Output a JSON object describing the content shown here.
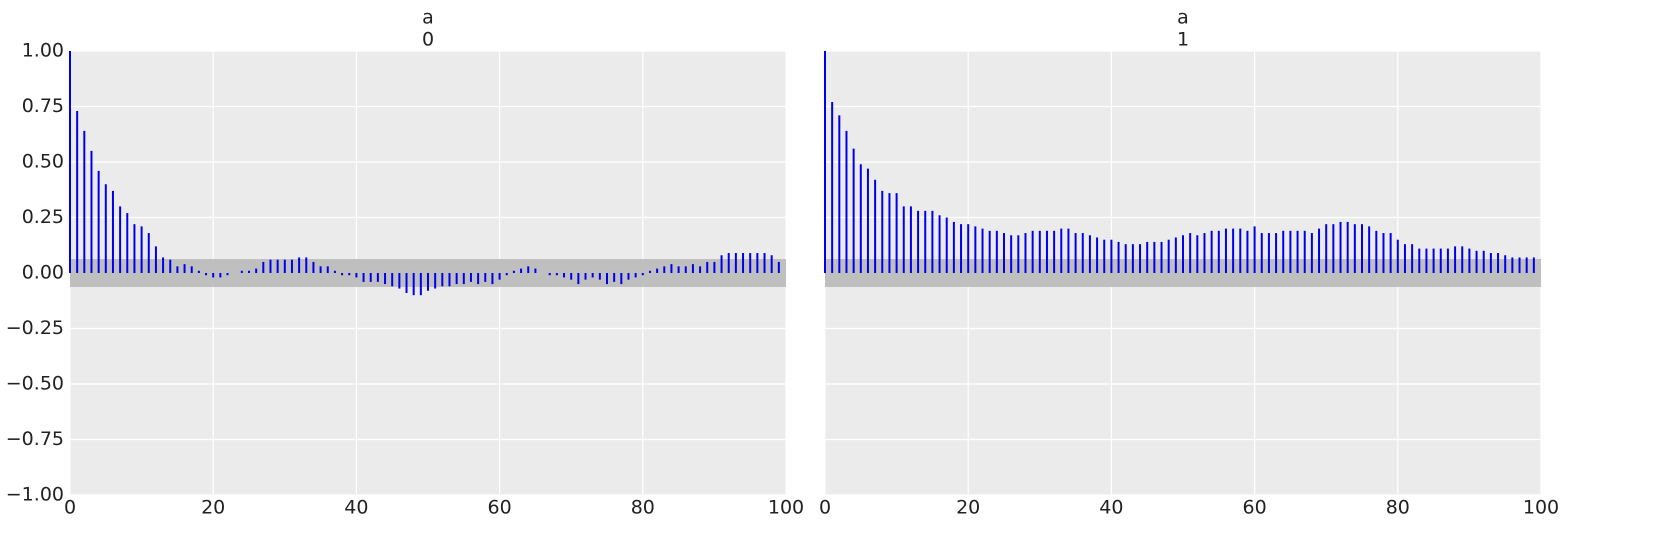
{
  "chart_data": [
    {
      "type": "stem",
      "title": "a",
      "subtitle": "0",
      "color": "#0000ee",
      "band_color": "#bfbfbf",
      "confidence_band": 0.063,
      "x": [
        0,
        1,
        2,
        3,
        4,
        5,
        6,
        7,
        8,
        9,
        10,
        11,
        12,
        13,
        14,
        15,
        16,
        17,
        18,
        19,
        20,
        21,
        22,
        23,
        24,
        25,
        26,
        27,
        28,
        29,
        30,
        31,
        32,
        33,
        34,
        35,
        36,
        37,
        38,
        39,
        40,
        41,
        42,
        43,
        44,
        45,
        46,
        47,
        48,
        49,
        50,
        51,
        52,
        53,
        54,
        55,
        56,
        57,
        58,
        59,
        60,
        61,
        62,
        63,
        64,
        65,
        66,
        67,
        68,
        69,
        70,
        71,
        72,
        73,
        74,
        75,
        76,
        77,
        78,
        79,
        80,
        81,
        82,
        83,
        84,
        85,
        86,
        87,
        88,
        89,
        90,
        91,
        92,
        93,
        94,
        95,
        96,
        97,
        98,
        99
      ],
      "values": [
        1.0,
        0.73,
        0.64,
        0.55,
        0.46,
        0.4,
        0.37,
        0.3,
        0.27,
        0.22,
        0.21,
        0.18,
        0.12,
        0.07,
        0.06,
        0.03,
        0.04,
        0.03,
        0.01,
        -0.01,
        -0.02,
        -0.02,
        -0.01,
        0.0,
        0.01,
        0.01,
        0.02,
        0.05,
        0.06,
        0.06,
        0.06,
        0.06,
        0.07,
        0.07,
        0.05,
        0.03,
        0.03,
        0.01,
        -0.01,
        -0.01,
        -0.02,
        -0.04,
        -0.04,
        -0.04,
        -0.05,
        -0.06,
        -0.07,
        -0.09,
        -0.1,
        -0.1,
        -0.08,
        -0.07,
        -0.06,
        -0.06,
        -0.05,
        -0.05,
        -0.04,
        -0.05,
        -0.04,
        -0.05,
        -0.03,
        -0.01,
        0.01,
        0.02,
        0.03,
        0.02,
        0.0,
        -0.01,
        -0.01,
        -0.02,
        -0.03,
        -0.05,
        -0.03,
        -0.02,
        -0.03,
        -0.05,
        -0.04,
        -0.05,
        -0.03,
        -0.02,
        -0.01,
        0.01,
        0.02,
        0.03,
        0.04,
        0.03,
        0.03,
        0.04,
        0.03,
        0.05,
        0.05,
        0.08,
        0.09,
        0.09,
        0.09,
        0.09,
        0.09,
        0.09,
        0.08,
        0.05
      ],
      "xlim": [
        0,
        100
      ],
      "xticks": [
        0,
        20,
        40,
        60,
        80,
        100
      ],
      "ylim": [
        -1,
        1
      ],
      "yticks": [
        {
          "value": -1,
          "label": "−1.00"
        },
        {
          "value": -0.75,
          "label": "−0.75"
        },
        {
          "value": -0.5,
          "label": "−0.50"
        },
        {
          "value": -0.25,
          "label": "−0.25"
        },
        {
          "value": 0,
          "label": "0.00"
        },
        {
          "value": 0.25,
          "label": "0.25"
        },
        {
          "value": 0.5,
          "label": "0.50"
        },
        {
          "value": 0.75,
          "label": "0.75"
        },
        {
          "value": 1,
          "label": "1.00"
        }
      ],
      "grid": true
    },
    {
      "type": "stem",
      "title": "a",
      "subtitle": "1",
      "color": "#0000ee",
      "band_color": "#bfbfbf",
      "confidence_band": 0.063,
      "x": [
        0,
        1,
        2,
        3,
        4,
        5,
        6,
        7,
        8,
        9,
        10,
        11,
        12,
        13,
        14,
        15,
        16,
        17,
        18,
        19,
        20,
        21,
        22,
        23,
        24,
        25,
        26,
        27,
        28,
        29,
        30,
        31,
        32,
        33,
        34,
        35,
        36,
        37,
        38,
        39,
        40,
        41,
        42,
        43,
        44,
        45,
        46,
        47,
        48,
        49,
        50,
        51,
        52,
        53,
        54,
        55,
        56,
        57,
        58,
        59,
        60,
        61,
        62,
        63,
        64,
        65,
        66,
        67,
        68,
        69,
        70,
        71,
        72,
        73,
        74,
        75,
        76,
        77,
        78,
        79,
        80,
        81,
        82,
        83,
        84,
        85,
        86,
        87,
        88,
        89,
        90,
        91,
        92,
        93,
        94,
        95,
        96,
        97,
        98,
        99
      ],
      "values": [
        1.0,
        0.77,
        0.71,
        0.64,
        0.56,
        0.49,
        0.47,
        0.42,
        0.37,
        0.36,
        0.36,
        0.3,
        0.3,
        0.28,
        0.28,
        0.28,
        0.26,
        0.25,
        0.23,
        0.22,
        0.22,
        0.21,
        0.2,
        0.19,
        0.19,
        0.18,
        0.17,
        0.17,
        0.18,
        0.19,
        0.19,
        0.19,
        0.19,
        0.2,
        0.2,
        0.18,
        0.18,
        0.17,
        0.16,
        0.15,
        0.15,
        0.14,
        0.13,
        0.13,
        0.13,
        0.14,
        0.14,
        0.14,
        0.15,
        0.16,
        0.17,
        0.18,
        0.17,
        0.18,
        0.19,
        0.19,
        0.2,
        0.2,
        0.2,
        0.19,
        0.21,
        0.18,
        0.18,
        0.18,
        0.19,
        0.19,
        0.19,
        0.19,
        0.18,
        0.2,
        0.22,
        0.22,
        0.23,
        0.23,
        0.22,
        0.22,
        0.21,
        0.19,
        0.18,
        0.18,
        0.15,
        0.13,
        0.13,
        0.11,
        0.11,
        0.11,
        0.11,
        0.11,
        0.12,
        0.12,
        0.11,
        0.1,
        0.1,
        0.09,
        0.09,
        0.08,
        0.07,
        0.07,
        0.07,
        0.07
      ],
      "xlim": [
        0,
        100
      ],
      "xticks": [
        0,
        20,
        40,
        60,
        80,
        100
      ],
      "ylim": [
        -1,
        1
      ],
      "yticks": [
        -1,
        -0.75,
        -0.5,
        -0.25,
        0,
        0.25,
        0.5,
        0.75,
        1
      ],
      "grid": true
    }
  ]
}
